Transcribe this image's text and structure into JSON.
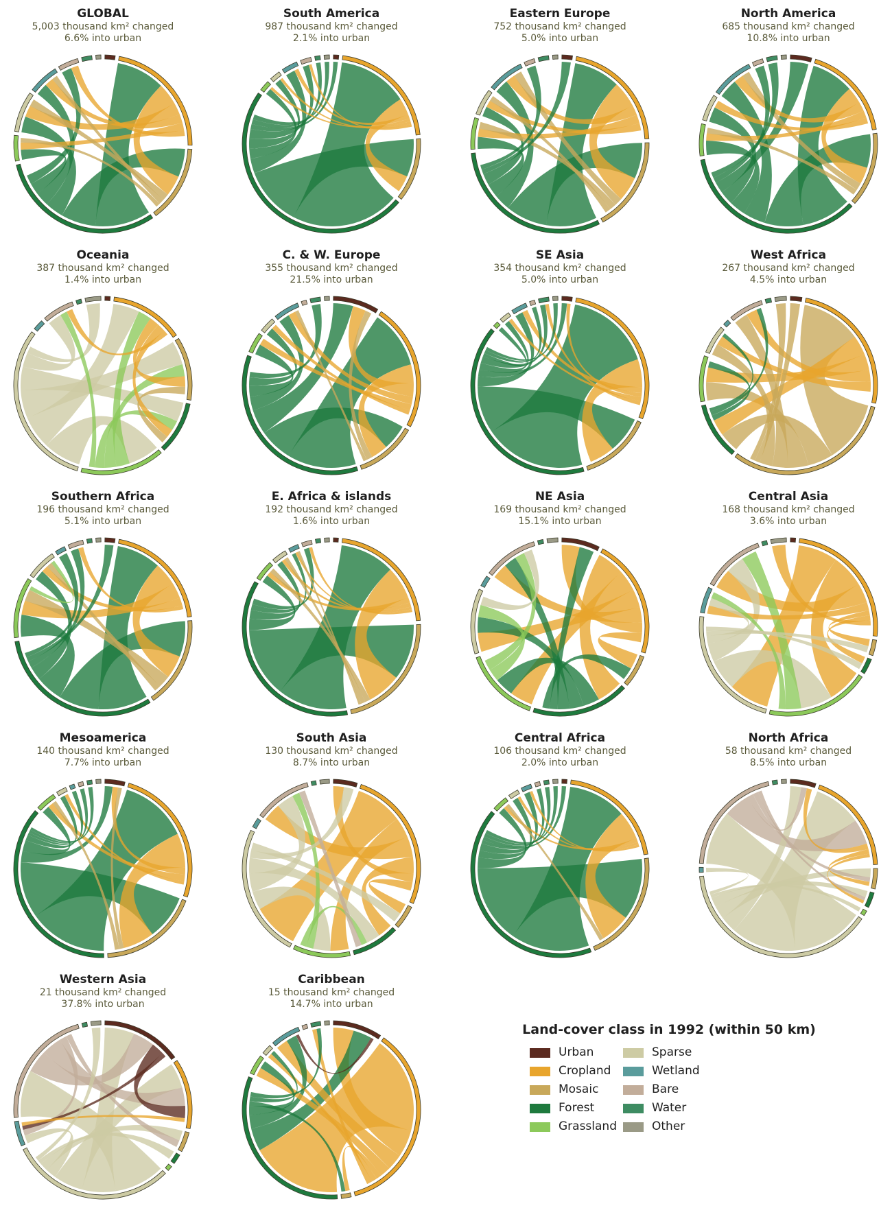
{
  "classes": [
    {
      "key": "urban",
      "label": "Urban",
      "color": "#5b2a1f"
    },
    {
      "key": "cropland",
      "label": "Cropland",
      "color": "#e8a52d"
    },
    {
      "key": "mosaic",
      "label": "Mosaic",
      "color": "#c8a85a"
    },
    {
      "key": "forest",
      "label": "Forest",
      "color": "#1e7a3e"
    },
    {
      "key": "grassland",
      "label": "Grassland",
      "color": "#8cc95a"
    },
    {
      "key": "sparse",
      "label": "Sparse",
      "color": "#cdcba4"
    },
    {
      "key": "wetland",
      "label": "Wetland",
      "color": "#5a9c9c"
    },
    {
      "key": "bare",
      "label": "Bare",
      "color": "#c2ad9a"
    },
    {
      "key": "water",
      "label": "Water",
      "color": "#3e8c62"
    },
    {
      "key": "other",
      "label": "Other",
      "color": "#9a9a86"
    }
  ],
  "legend": {
    "title": "Land-cover class in 1992 (within 50 km)"
  },
  "chart_data": [
    {
      "type": "chord",
      "title": "GLOBAL",
      "line1": "5,003 thousand km² changed",
      "line2": "6.6% into urban",
      "arcs": [
        2,
        24,
        15,
        33,
        5,
        8,
        6,
        4,
        2,
        1
      ]
    },
    {
      "type": "chord",
      "title": "South America",
      "line1": "987 thousand km² changed",
      "line2": "2.1% into urban",
      "arcs": [
        1,
        22,
        12,
        50,
        2,
        2,
        3,
        2,
        1,
        1
      ]
    },
    {
      "type": "chord",
      "title": "Eastern Europe",
      "line1": "752 thousand km² changed",
      "line2": "5.0% into urban",
      "arcs": [
        2,
        22,
        18,
        32,
        6,
        5,
        7,
        2,
        2,
        1
      ]
    },
    {
      "type": "chord",
      "title": "North America",
      "line1": "685 thousand km² changed",
      "line2": "10.8% into urban",
      "arcs": [
        4,
        18,
        14,
        36,
        6,
        5,
        8,
        2,
        2,
        1
      ]
    },
    {
      "type": "chord",
      "title": "Oceania",
      "line1": "387 thousand km² changed",
      "line2": "1.4% into urban",
      "arcs": [
        1,
        14,
        12,
        10,
        16,
        32,
        2,
        6,
        1,
        3
      ]
    },
    {
      "type": "chord",
      "title": "C. & W. Europe",
      "line1": "355 thousand km² changed",
      "line2": "21.5% into urban",
      "arcs": [
        9,
        25,
        12,
        38,
        4,
        3,
        5,
        1,
        2,
        1
      ]
    },
    {
      "type": "chord",
      "title": "SE Asia",
      "line1": "354 thousand km² changed",
      "line2": "5.0% into urban",
      "arcs": [
        2,
        30,
        14,
        43,
        1,
        2,
        3,
        1,
        2,
        1
      ]
    },
    {
      "type": "chord",
      "title": "West Africa",
      "line1": "267 thousand km² changed",
      "line2": "4.5% into urban",
      "arcs": [
        2,
        24,
        30,
        10,
        8,
        5,
        1,
        6,
        1,
        2
      ]
    },
    {
      "type": "chord",
      "title": "Southern Africa",
      "line1": "196 thousand km² changed",
      "line2": "5.1% into urban",
      "arcs": [
        2,
        22,
        18,
        34,
        12,
        6,
        2,
        3,
        1,
        1
      ]
    },
    {
      "type": "chord",
      "title": "E. Africa & islands",
      "line1": "192 thousand km² changed",
      "line2": "1.6% into urban",
      "arcs": [
        1,
        24,
        24,
        40,
        4,
        3,
        2,
        2,
        1,
        1
      ]
    },
    {
      "type": "chord",
      "title": "NE Asia",
      "line1": "169 thousand km² changed",
      "line2": "15.1% into urban",
      "arcs": [
        7,
        22,
        6,
        18,
        14,
        12,
        2,
        10,
        1,
        2
      ]
    },
    {
      "type": "chord",
      "title": "Central Asia",
      "line1": "168 thousand km² changed",
      "line2": "3.6% into urban",
      "arcs": [
        1,
        26,
        3,
        3,
        20,
        24,
        5,
        12,
        1,
        3
      ]
    },
    {
      "type": "chord",
      "title": "Mesoamerica",
      "line1": "140 thousand km² changed",
      "line2": "7.7% into urban",
      "arcs": [
        4,
        28,
        20,
        40,
        4,
        2,
        1,
        1,
        1,
        1
      ]
    },
    {
      "type": "chord",
      "title": "South Asia",
      "line1": "130 thousand km² changed",
      "line2": "8.7% into urban",
      "arcs": [
        5,
        30,
        5,
        10,
        12,
        28,
        2,
        12,
        1,
        2
      ]
    },
    {
      "type": "chord",
      "title": "Central Africa",
      "line1": "106 thousand km² changed",
      "line2": "2.0% into urban",
      "arcs": [
        1,
        22,
        22,
        45,
        3,
        2,
        2,
        1,
        1,
        1
      ]
    },
    {
      "type": "chord",
      "title": "North Africa",
      "line1": "58 thousand km² changed",
      "line2": "8.5% into urban",
      "arcs": [
        5,
        20,
        4,
        3,
        1,
        42,
        1,
        22,
        1,
        1
      ]
    },
    {
      "type": "chord",
      "title": "Western Asia",
      "line1": "21 thousand km² changed",
      "line2": "37.8% into urban",
      "arcs": [
        16,
        14,
        4,
        2,
        1,
        33,
        5,
        24,
        1,
        2
      ]
    },
    {
      "type": "chord",
      "title": "Caribbean",
      "line1": "15 thousand km² changed",
      "line2": "14.7% into urban",
      "arcs": [
        10,
        40,
        2,
        36,
        4,
        2,
        6,
        1,
        2,
        1
      ]
    }
  ]
}
